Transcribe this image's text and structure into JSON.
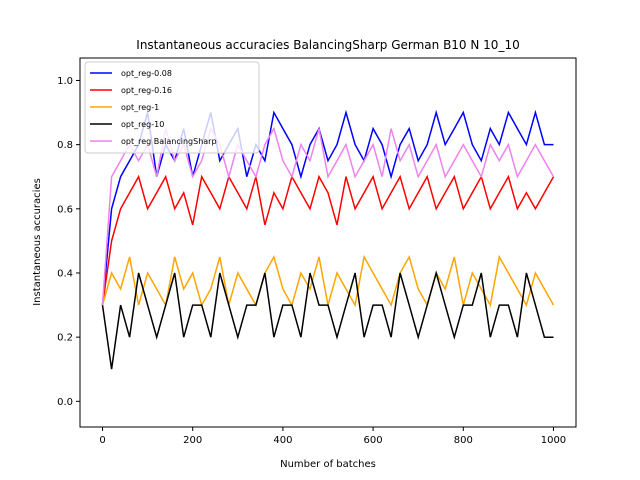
{
  "chart_data": {
    "type": "line",
    "title": "Instantaneous accuracies BalancingSharp German B10 N 10_10",
    "xlabel": "Number of batches",
    "ylabel": "Instantaneous accuracies",
    "xlim": [
      -50,
      1050
    ],
    "ylim": [
      -0.08,
      1.07
    ],
    "xticks": [
      0,
      200,
      400,
      600,
      800,
      1000
    ],
    "yticks": [
      0.0,
      0.2,
      0.4,
      0.6,
      0.8,
      1.0
    ],
    "xtick_labels": [
      "0",
      "200",
      "400",
      "600",
      "800",
      "1000"
    ],
    "ytick_labels": [
      "0.0",
      "0.2",
      "0.4",
      "0.6",
      "0.8",
      "1.0"
    ],
    "grid": false,
    "legend_position": "top-left",
    "series": [
      {
        "name": "opt_reg-0.08",
        "color": "#0000ff",
        "x": [
          0,
          20,
          40,
          60,
          80,
          100,
          120,
          140,
          160,
          180,
          200,
          220,
          240,
          260,
          280,
          300,
          320,
          340,
          360,
          380,
          400,
          420,
          440,
          460,
          480,
          500,
          520,
          540,
          560,
          580,
          600,
          620,
          640,
          660,
          680,
          700,
          720,
          740,
          760,
          780,
          800,
          820,
          840,
          860,
          880,
          900,
          920,
          940,
          960,
          980,
          1000
        ],
        "values": [
          0.3,
          0.6,
          0.7,
          0.75,
          0.8,
          0.9,
          0.7,
          0.8,
          0.75,
          0.85,
          0.7,
          0.8,
          0.9,
          0.75,
          0.8,
          0.85,
          0.7,
          0.8,
          0.75,
          0.9,
          0.85,
          0.8,
          0.7,
          0.8,
          0.85,
          0.75,
          0.8,
          0.9,
          0.8,
          0.75,
          0.85,
          0.8,
          0.7,
          0.8,
          0.85,
          0.75,
          0.8,
          0.9,
          0.8,
          0.85,
          0.9,
          0.8,
          0.75,
          0.85,
          0.8,
          0.9,
          0.85,
          0.8,
          0.9,
          0.8,
          0.8
        ]
      },
      {
        "name": "opt_reg-0.16",
        "color": "#ff0000",
        "x": [
          0,
          20,
          40,
          60,
          80,
          100,
          120,
          140,
          160,
          180,
          200,
          220,
          240,
          260,
          280,
          300,
          320,
          340,
          360,
          380,
          400,
          420,
          440,
          460,
          480,
          500,
          520,
          540,
          560,
          580,
          600,
          620,
          640,
          660,
          680,
          700,
          720,
          740,
          760,
          780,
          800,
          820,
          840,
          860,
          880,
          900,
          920,
          940,
          960,
          980,
          1000
        ],
        "values": [
          0.3,
          0.5,
          0.6,
          0.65,
          0.7,
          0.6,
          0.65,
          0.7,
          0.6,
          0.65,
          0.55,
          0.7,
          0.65,
          0.6,
          0.7,
          0.65,
          0.6,
          0.7,
          0.55,
          0.65,
          0.6,
          0.7,
          0.65,
          0.6,
          0.7,
          0.65,
          0.55,
          0.7,
          0.6,
          0.65,
          0.7,
          0.6,
          0.65,
          0.7,
          0.6,
          0.65,
          0.7,
          0.6,
          0.65,
          0.7,
          0.6,
          0.65,
          0.7,
          0.6,
          0.65,
          0.7,
          0.6,
          0.65,
          0.6,
          0.65,
          0.7
        ]
      },
      {
        "name": "opt_reg-1",
        "color": "#ffa500",
        "x": [
          0,
          20,
          40,
          60,
          80,
          100,
          120,
          140,
          160,
          180,
          200,
          220,
          240,
          260,
          280,
          300,
          320,
          340,
          360,
          380,
          400,
          420,
          440,
          460,
          480,
          500,
          520,
          540,
          560,
          580,
          600,
          620,
          640,
          660,
          680,
          700,
          720,
          740,
          760,
          780,
          800,
          820,
          840,
          860,
          880,
          900,
          920,
          940,
          960,
          980,
          1000
        ],
        "values": [
          0.3,
          0.4,
          0.35,
          0.45,
          0.3,
          0.4,
          0.35,
          0.3,
          0.45,
          0.35,
          0.4,
          0.3,
          0.35,
          0.45,
          0.3,
          0.4,
          0.35,
          0.3,
          0.4,
          0.45,
          0.35,
          0.3,
          0.4,
          0.35,
          0.45,
          0.3,
          0.4,
          0.35,
          0.3,
          0.45,
          0.4,
          0.35,
          0.3,
          0.4,
          0.45,
          0.35,
          0.3,
          0.4,
          0.35,
          0.45,
          0.3,
          0.4,
          0.35,
          0.3,
          0.45,
          0.4,
          0.35,
          0.3,
          0.4,
          0.35,
          0.3
        ]
      },
      {
        "name": "opt_reg-10",
        "color": "#000000",
        "x": [
          0,
          20,
          40,
          60,
          80,
          100,
          120,
          140,
          160,
          180,
          200,
          220,
          240,
          260,
          280,
          300,
          320,
          340,
          360,
          380,
          400,
          420,
          440,
          460,
          480,
          500,
          520,
          540,
          560,
          580,
          600,
          620,
          640,
          660,
          680,
          700,
          720,
          740,
          760,
          780,
          800,
          820,
          840,
          860,
          880,
          900,
          920,
          940,
          960,
          980,
          1000
        ],
        "values": [
          0.3,
          0.1,
          0.3,
          0.2,
          0.4,
          0.3,
          0.2,
          0.3,
          0.4,
          0.2,
          0.3,
          0.3,
          0.2,
          0.4,
          0.3,
          0.2,
          0.3,
          0.3,
          0.4,
          0.2,
          0.3,
          0.3,
          0.2,
          0.4,
          0.3,
          0.3,
          0.2,
          0.3,
          0.4,
          0.2,
          0.3,
          0.3,
          0.2,
          0.4,
          0.3,
          0.2,
          0.3,
          0.4,
          0.3,
          0.2,
          0.3,
          0.3,
          0.4,
          0.2,
          0.3,
          0.3,
          0.2,
          0.4,
          0.3,
          0.2,
          0.2
        ]
      },
      {
        "name": "opt_reg BalancingSharp",
        "color": "#ee82ee",
        "x": [
          0,
          20,
          40,
          60,
          80,
          100,
          120,
          140,
          160,
          180,
          200,
          220,
          240,
          260,
          280,
          300,
          320,
          340,
          360,
          380,
          400,
          420,
          440,
          460,
          480,
          500,
          520,
          540,
          560,
          580,
          600,
          620,
          640,
          660,
          680,
          700,
          720,
          740,
          760,
          780,
          800,
          820,
          840,
          860,
          880,
          900,
          920,
          940,
          960,
          980,
          1000
        ],
        "values": [
          0.3,
          0.7,
          0.75,
          0.8,
          0.75,
          0.8,
          0.7,
          0.85,
          0.75,
          0.8,
          0.7,
          0.75,
          0.85,
          0.8,
          0.7,
          0.8,
          0.75,
          0.7,
          0.8,
          0.85,
          0.75,
          0.7,
          0.8,
          0.75,
          0.85,
          0.7,
          0.75,
          0.8,
          0.7,
          0.75,
          0.8,
          0.7,
          0.85,
          0.75,
          0.8,
          0.7,
          0.75,
          0.8,
          0.7,
          0.75,
          0.8,
          0.75,
          0.7,
          0.8,
          0.75,
          0.8,
          0.7,
          0.75,
          0.8,
          0.75,
          0.7
        ]
      }
    ]
  }
}
